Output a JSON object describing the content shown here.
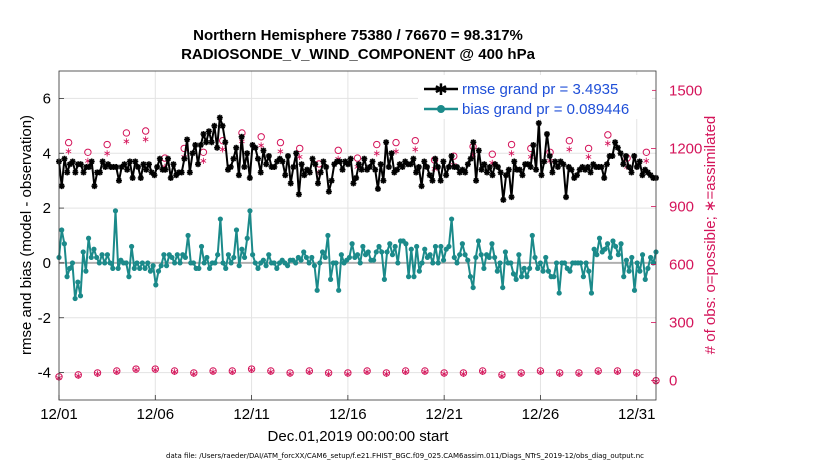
{
  "chart_data": {
    "type": "line",
    "title": "Northern Hemisphere 75380 / 76670 = 98.317%",
    "subtitle": "RADIOSONDE_V_WIND_COMPONENT @ 400 hPa",
    "xlabel": "Dec.01,2019 00:00:00 start",
    "ylabel_left": "rmse and bias (model - observation)",
    "ylabel_right": "# of obs: o=possible; ∗=assimilated",
    "xlim": [
      1,
      32
    ],
    "ylim_left": [
      -5,
      7
    ],
    "ylim_right": [
      -100,
      1600
    ],
    "x_ticks": [
      1,
      6,
      11,
      16,
      21,
      26,
      31
    ],
    "x_tick_labels": [
      "12/01",
      "12/06",
      "12/11",
      "12/16",
      "12/21",
      "12/26",
      "12/31"
    ],
    "y_ticks_left": [
      -4,
      -2,
      0,
      2,
      4,
      6
    ],
    "y_ticks_right": [
      0,
      300,
      600,
      900,
      1200,
      1500
    ],
    "grid": true,
    "legend_position": "top-right",
    "colors": {
      "rmse": "#000000",
      "bias": "#1b8a8a",
      "obs": "#d4145a",
      "zero_line": "#b0b0b0",
      "legend_text": "#1f4fd8"
    },
    "legend": [
      "rmse grand pr = 3.4935",
      "bias grand pr = 0.089446"
    ],
    "footnote": "data file: /Users/raeder/DAI/ATM_forcXX/CAM6_setup/f.e21.FHIST_BGC.f09_025.CAM6assim.011/Diags_NTrS_2019-12/obs_diag_output.nc",
    "series": [
      {
        "name": "rmse",
        "axis": "left",
        "values": [
          3.7,
          2.8,
          3.8,
          3.3,
          3.6,
          3.7,
          3.3,
          3.6,
          3.6,
          3.3,
          3.5,
          3.5,
          3.7,
          2.8,
          3.3,
          3.3,
          3.7,
          3.5,
          3.6,
          3.5,
          3.5,
          3.5,
          3.0,
          3.5,
          3.6,
          3.4,
          3.7,
          3.1,
          3.7,
          3.5,
          3.1,
          3.6,
          3.4,
          3.6,
          3.3,
          3.2,
          3.5,
          3.8,
          3.4,
          3.4,
          3.8,
          3.1,
          3.6,
          3.2,
          3.3,
          3.3,
          3.8,
          4.5,
          3.3,
          4.0,
          4.3,
          3.6,
          4.3,
          4.7,
          4.4,
          4.8,
          4.4,
          5.0,
          4.2,
          5.3,
          5.0,
          4.4,
          3.4,
          3.5,
          3.8,
          4.2,
          3.2,
          4.6,
          3.5,
          4.0,
          3.1,
          4.3,
          4.2,
          3.8,
          3.3,
          4.1,
          3.6,
          3.9,
          3.5,
          3.5,
          3.7,
          3.8,
          3.7,
          3.2,
          3.9,
          2.9,
          3.5,
          4.0,
          2.5,
          3.6,
          3.2,
          3.4,
          3.3,
          3.8,
          3.6,
          2.9,
          3.3,
          3.7,
          3.5,
          2.6,
          3.0,
          3.6,
          3.7,
          3.7,
          3.4,
          3.7,
          3.6,
          3.8,
          2.9,
          3.1,
          3.6,
          3.4,
          3.8,
          3.4,
          3.5,
          3.7,
          3.4,
          2.7,
          3.6,
          3.0,
          4.4,
          3.5,
          4.0,
          3.3,
          3.4,
          3.6,
          3.5,
          3.7,
          3.6,
          3.6,
          3.8,
          3.3,
          3.5,
          2.8,
          3.7,
          3.5,
          3.2,
          3.0,
          3.8,
          3.5,
          3.0,
          3.7,
          3.2,
          3.5,
          3.9,
          3.5,
          3.5,
          3.3,
          3.4,
          3.3,
          3.6,
          3.8,
          4.4,
          3.0,
          4.1,
          3.4,
          3.6,
          3.3,
          3.5,
          3.2,
          3.6,
          3.5,
          3.3,
          2.3,
          3.2,
          3.4,
          2.4,
          3.7,
          3.4,
          3.4,
          3.2,
          3.6,
          3.6,
          3.5,
          4.3,
          3.4,
          5.1,
          3.2,
          3.7,
          4.7,
          3.9,
          3.3,
          3.7,
          3.5,
          3.7,
          3.6,
          2.4,
          3.5,
          3.4,
          3.1,
          3.2,
          3.4,
          3.5,
          3.4,
          3.5,
          3.3,
          3.6,
          3.5,
          3.5,
          3.5,
          3.1,
          3.6,
          3.9,
          3.9,
          4.4,
          4.2,
          4.0,
          3.6,
          3.9,
          3.5,
          3.3,
          3.9,
          3.5,
          3.7,
          3.2,
          3.4,
          3.3,
          3.2,
          3.1,
          3.1
        ]
      },
      {
        "name": "bias",
        "axis": "left",
        "values": [
          0.2,
          1.2,
          0.7,
          -0.5,
          -0.2,
          0.0,
          -1.3,
          -0.7,
          -1.2,
          0.4,
          -0.3,
          0.9,
          0.2,
          0.5,
          0.2,
          0.0,
          0.3,
          0.0,
          0.3,
          0.0,
          -0.2,
          1.9,
          -0.2,
          0.1,
          0.0,
          0.0,
          -0.5,
          0.6,
          -0.2,
          0.0,
          -0.2,
          0.0,
          -0.2,
          0.0,
          -0.3,
          -0.1,
          -0.8,
          -0.3,
          -0.1,
          0.3,
          -0.1,
          0.3,
          0.2,
          0.0,
          0.3,
          0.0,
          0.3,
          0.2,
          1.0,
          0.0,
          0.0,
          -0.2,
          -0.2,
          0.6,
          0.0,
          0.2,
          -0.2,
          0.0,
          0.0,
          0.3,
          1.6,
          0.0,
          -0.2,
          0.3,
          0.0,
          0.2,
          1.2,
          -0.1,
          0.5,
          0.2,
          0.9,
          1.9,
          0.3,
          0.0,
          -0.2,
          0.0,
          0.1,
          -0.1,
          0.3,
          0.0,
          0.0,
          -0.2,
          0.0,
          0.1,
          0.0,
          -0.1,
          0.1,
          0.1,
          0.0,
          0.2,
          0.1,
          0.4,
          0.2,
          0.0,
          0.2,
          -0.1,
          -1.0,
          0.0,
          0.4,
          0.2,
          1.0,
          -0.6,
          0.0,
          0.0,
          -1.0,
          0.3,
          0.0,
          0.1,
          0.2,
          0.7,
          0.2,
          0.3,
          0.0,
          0.6,
          0.3,
          0.4,
          0.1,
          0.1,
          0.4,
          0.6,
          0.4,
          -0.6,
          0.4,
          0.7,
          0.3,
          0.6,
          0.0,
          0.8,
          0.8,
          0.7,
          -0.5,
          0.5,
          -0.5,
          0.6,
          -0.3,
          0.0,
          0.5,
          0.2,
          0.3,
          0.0,
          0.6,
          0.0,
          0.6,
          0.1,
          0.5,
          0.6,
          1.6,
          0.2,
          0.0,
          0.3,
          0.7,
          0.3,
          0.1,
          -0.5,
          -0.9,
          0.2,
          0.8,
          0.3,
          -0.2,
          0.3,
          0.2,
          0.7,
          0.2,
          -0.3,
          0.0,
          -0.9,
          0.4,
          0.0,
          0.0,
          -0.4,
          -0.6,
          0.3,
          -0.5,
          -0.2,
          -0.5,
          -0.2,
          1.0,
          0.2,
          -0.2,
          0.0,
          -0.3,
          0.2,
          -0.3,
          -0.5,
          -0.5,
          0.0,
          -1.1,
          0.0,
          0.0,
          -0.2,
          -0.3,
          0.0,
          0.0,
          0.0,
          0.0,
          -0.5,
          0.0,
          -0.3,
          -1.1,
          0.5,
          0.3,
          0.9,
          0.4,
          0.5,
          0.7,
          0.2,
          0.8,
          0.6,
          0.3,
          0.7,
          -0.5,
          0.1,
          -0.3,
          0.2,
          -1.0,
          0.0,
          -0.3,
          0.3,
          -0.6,
          -0.2,
          0.2,
          0.0,
          0.4
        ]
      },
      {
        "name": "obs_possible",
        "axis": "right",
        "style": "o",
        "x": [
          1,
          1.5,
          2,
          2.5,
          3,
          3.5,
          4,
          4.5,
          5,
          5.5,
          6,
          6.5,
          7,
          7.5,
          8,
          8.5,
          9,
          9.5,
          10,
          10.5,
          11,
          11.5,
          12,
          12.5,
          13,
          13.5,
          14,
          14.5,
          15,
          15.5,
          16,
          16.5,
          17,
          17.5,
          18,
          18.5,
          19,
          19.5,
          20,
          20.5,
          21,
          21.5,
          22,
          22.5,
          23,
          23.5,
          24,
          24.5,
          25,
          25.5,
          26,
          26.5,
          27,
          27.5,
          28,
          28.5,
          29,
          29.5,
          30,
          30.5,
          31,
          31.5,
          32
        ],
        "values": [
          20,
          1230,
          30,
          1180,
          40,
          1220,
          50,
          1280,
          60,
          1290,
          60,
          1150,
          50,
          1200,
          40,
          1180,
          50,
          1240,
          50,
          1280,
          60,
          1260,
          50,
          1230,
          40,
          1200,
          50,
          1120,
          40,
          1190,
          40,
          1150,
          50,
          1220,
          40,
          1230,
          50,
          1240,
          50,
          1140,
          40,
          1160,
          40,
          1210,
          50,
          1170,
          30,
          1220,
          40,
          1200,
          50,
          1180,
          40,
          1240,
          40,
          1200,
          50,
          1270,
          50,
          1150,
          40,
          1180,
          0
        ]
      },
      {
        "name": "obs_assimilated",
        "axis": "right",
        "style": "*",
        "x": [
          1,
          1.5,
          2,
          2.5,
          3,
          3.5,
          4,
          4.5,
          5,
          5.5,
          6,
          6.5,
          7,
          7.5,
          8,
          8.5,
          9,
          9.5,
          10,
          10.5,
          11,
          11.5,
          12,
          12.5,
          13,
          13.5,
          14,
          14.5,
          15,
          15.5,
          16,
          16.5,
          17,
          17.5,
          18,
          18.5,
          19,
          19.5,
          20,
          20.5,
          21,
          21.5,
          22,
          22.5,
          23,
          23.5,
          24,
          24.5,
          25,
          25.5,
          26,
          26.5,
          27,
          27.5,
          28,
          28.5,
          29,
          29.5,
          30,
          30.5,
          31,
          31.5,
          32
        ],
        "values": [
          20,
          1190,
          30,
          1140,
          40,
          1180,
          50,
          1240,
          60,
          1250,
          60,
          1110,
          50,
          1160,
          40,
          1140,
          50,
          1200,
          50,
          1240,
          60,
          1220,
          50,
          1190,
          40,
          1160,
          50,
          1080,
          40,
          1150,
          40,
          1110,
          50,
          1180,
          40,
          1190,
          50,
          1200,
          50,
          1100,
          40,
          1120,
          40,
          1170,
          50,
          1130,
          30,
          1180,
          40,
          1160,
          50,
          1140,
          40,
          1200,
          40,
          1160,
          50,
          1230,
          50,
          1110,
          40,
          1140,
          0
        ]
      }
    ]
  }
}
